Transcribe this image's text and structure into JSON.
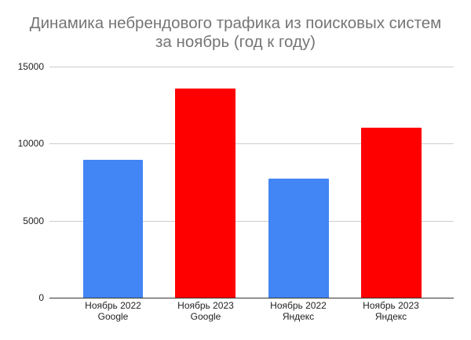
{
  "chart_data": {
    "type": "bar",
    "title": "Динамика небрендового трафика из поисковых систем за ноябрь (год к году)",
    "title_lines": [
      "Динамика небрендового трафика из поисковых систем",
      "за ноябрь (год к году)"
    ],
    "categories": [
      "Ноябрь 2022 Google",
      "Ноябрь 2023 Google",
      "Ноябрь 2022 Яндекс",
      "Ноябрь 2023 Яндекс"
    ],
    "category_lines": [
      [
        "Ноябрь 2022",
        "Google"
      ],
      [
        "Ноябрь 2023",
        "Google"
      ],
      [
        "Ноябрь 2022",
        "Яндекс"
      ],
      [
        "Ноябрь 2023",
        "Яндекс"
      ]
    ],
    "values": [
      8950,
      13600,
      7750,
      11050
    ],
    "bar_colors": [
      "#4285f4",
      "#ff0000",
      "#4285f4",
      "#ff0000"
    ],
    "xlabel": "",
    "ylabel": "",
    "ylim": [
      0,
      15000
    ],
    "yticks": [
      "0",
      "5000",
      "10000",
      "15000"
    ],
    "grid": true,
    "legend": "none"
  }
}
